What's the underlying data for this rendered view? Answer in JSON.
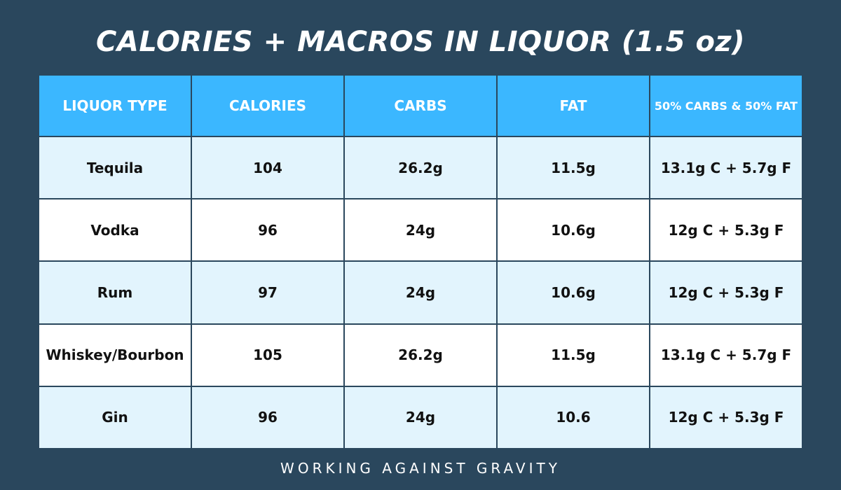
{
  "title": "CALORIES + MACROS IN LIQUOR (1.5 oz)",
  "footer": "WORKING AGAINST GRAVITY",
  "colors": {
    "background": "#2a475d",
    "header": "#3bb7ff",
    "row_alt": "#e2f4fd",
    "row": "#ffffff"
  },
  "chart_data": {
    "type": "table",
    "title": "CALORIES + MACROS IN LIQUOR (1.5 oz)",
    "columns": [
      "LIQUOR TYPE",
      "CALORIES",
      "CARBS",
      "FAT",
      "50% CARBS & 50% FAT"
    ],
    "rows": [
      [
        "Tequila",
        "104",
        "26.2g",
        "11.5g",
        "13.1g C + 5.7g F"
      ],
      [
        "Vodka",
        "96",
        "24g",
        "10.6g",
        "12g C + 5.3g F"
      ],
      [
        "Rum",
        "97",
        "24g",
        "10.6g",
        "12g C + 5.3g F"
      ],
      [
        "Whiskey/Bourbon",
        "105",
        "26.2g",
        "11.5g",
        "13.1g C + 5.7g F"
      ],
      [
        "Gin",
        "96",
        "24g",
        "10.6",
        "12g C + 5.3g F"
      ]
    ]
  }
}
